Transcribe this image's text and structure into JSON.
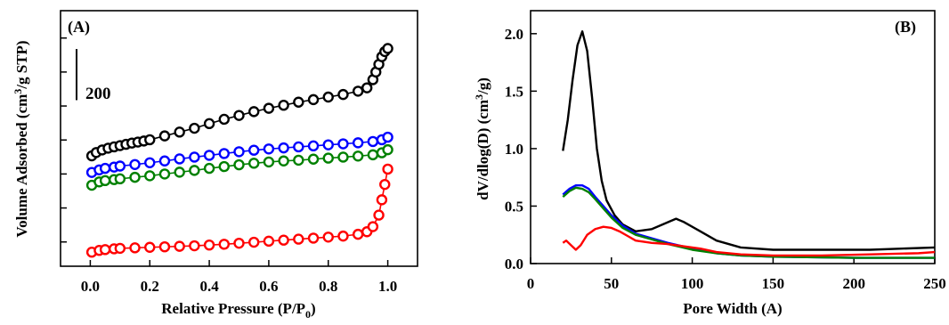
{
  "figure": {
    "panel_a_label": "(A)",
    "panel_b_label": "(B)",
    "scale_bar_label": "200"
  },
  "chart_data": [
    {
      "type": "scatter",
      "panel": "(A)",
      "xlabel": "Relative Pressure (P/P0)",
      "xlabel_parts": {
        "main": "Relative Pressure (P/P",
        "sub": "0",
        "end": ")"
      },
      "ylabel": "Volume Adsorbed (cm3/g STP)",
      "ylabel_parts": {
        "main": "Volume Adsorbed (cm",
        "sup": "3",
        "end": "/g STP)"
      },
      "xlim": [
        -0.1,
        1.1
      ],
      "xticks": [
        0.0,
        0.2,
        0.4,
        0.6,
        0.8,
        1.0
      ],
      "xtick_labels": [
        "0.0",
        "0.2",
        "0.4",
        "0.6",
        "0.8",
        "1.0"
      ],
      "ylim": [
        0,
        1000
      ],
      "y_tick_marks_units": [
        95,
        228,
        361,
        494,
        627,
        760,
        893
      ],
      "y_tick_labels_shown": false,
      "scale_bar": {
        "label": "200",
        "y_from": 650,
        "y_to": 850
      },
      "marker": "open-circle",
      "series": [
        {
          "color": "#000000",
          "x": [
            0.005,
            0.02,
            0.04,
            0.06,
            0.08,
            0.1,
            0.12,
            0.14,
            0.16,
            0.18,
            0.2,
            0.25,
            0.3,
            0.35,
            0.4,
            0.45,
            0.5,
            0.55,
            0.6,
            0.65,
            0.7,
            0.75,
            0.8,
            0.85,
            0.9,
            0.93,
            0.95,
            0.96,
            0.97,
            0.98,
            0.99,
            1.0
          ],
          "y": [
            432,
            445,
            455,
            462,
            467,
            472,
            477,
            482,
            486,
            490,
            495,
            510,
            525,
            540,
            558,
            575,
            590,
            605,
            618,
            630,
            642,
            652,
            662,
            672,
            685,
            698,
            730,
            760,
            790,
            820,
            840,
            852
          ]
        },
        {
          "color": "#0000ff",
          "x": [
            0.005,
            0.03,
            0.05,
            0.08,
            0.1,
            0.15,
            0.2,
            0.25,
            0.3,
            0.35,
            0.4,
            0.45,
            0.5,
            0.55,
            0.6,
            0.65,
            0.7,
            0.75,
            0.8,
            0.85,
            0.9,
            0.95,
            0.98,
            1.0
          ],
          "y": [
            367,
            377,
            383,
            388,
            392,
            398,
            405,
            412,
            420,
            427,
            434,
            441,
            448,
            454,
            459,
            463,
            467,
            471,
            475,
            479,
            483,
            488,
            495,
            505
          ]
        },
        {
          "color": "#008000",
          "x": [
            0.005,
            0.03,
            0.05,
            0.08,
            0.1,
            0.15,
            0.2,
            0.25,
            0.3,
            0.35,
            0.4,
            0.45,
            0.5,
            0.55,
            0.6,
            0.65,
            0.7,
            0.75,
            0.8,
            0.85,
            0.9,
            0.95,
            0.98,
            1.0
          ],
          "y": [
            317,
            330,
            335,
            339,
            342,
            348,
            354,
            361,
            368,
            375,
            383,
            390,
            397,
            403,
            408,
            412,
            415,
            419,
            423,
            427,
            431,
            436,
            444,
            456
          ]
        },
        {
          "color": "#ff0000",
          "x": [
            0.005,
            0.03,
            0.05,
            0.08,
            0.1,
            0.15,
            0.2,
            0.25,
            0.3,
            0.35,
            0.4,
            0.45,
            0.5,
            0.55,
            0.6,
            0.65,
            0.7,
            0.75,
            0.8,
            0.85,
            0.9,
            0.93,
            0.95,
            0.97,
            0.98,
            0.99,
            1.0
          ],
          "y": [
            55,
            62,
            65,
            68,
            70,
            72,
            74,
            76,
            78,
            80,
            83,
            86,
            90,
            94,
            98,
            102,
            106,
            110,
            114,
            118,
            125,
            135,
            155,
            200,
            260,
            320,
            380
          ]
        }
      ]
    },
    {
      "type": "line",
      "panel": "(B)",
      "xlabel": "Pore Width (A)",
      "ylabel": "dV/dlog(D) (cm3/g)",
      "ylabel_parts": {
        "main": "dV/dlog(D) (cm",
        "sup": "3",
        "end": "/g)"
      },
      "xlim": [
        0,
        250
      ],
      "ylim": [
        0,
        2.2
      ],
      "xticks": [
        0,
        50,
        100,
        150,
        200,
        250
      ],
      "xtick_labels": [
        "0",
        "50",
        "100",
        "150",
        "200",
        "250"
      ],
      "yticks": [
        0.0,
        0.5,
        1.0,
        1.5,
        2.0
      ],
      "ytick_labels": [
        "0.0",
        "0.5",
        "1.0",
        "1.5",
        "2.0"
      ],
      "series": [
        {
          "color": "#000000",
          "x": [
            20,
            23,
            26,
            29,
            32,
            35,
            38,
            41,
            44,
            47,
            52,
            57,
            65,
            75,
            85,
            90,
            95,
            105,
            115,
            130,
            150,
            180,
            210,
            230,
            250
          ],
          "y": [
            0.98,
            1.25,
            1.6,
            1.9,
            2.02,
            1.85,
            1.45,
            1.0,
            0.72,
            0.55,
            0.42,
            0.34,
            0.28,
            0.3,
            0.36,
            0.39,
            0.36,
            0.28,
            0.2,
            0.14,
            0.12,
            0.12,
            0.12,
            0.13,
            0.14
          ]
        },
        {
          "color": "#0000ff",
          "x": [
            20,
            24,
            28,
            32,
            36,
            40,
            45,
            50,
            57,
            65,
            75,
            85,
            100,
            115,
            130,
            150,
            200,
            250
          ],
          "y": [
            0.6,
            0.65,
            0.68,
            0.68,
            0.65,
            0.58,
            0.5,
            0.42,
            0.33,
            0.26,
            0.22,
            0.18,
            0.13,
            0.09,
            0.07,
            0.06,
            0.05,
            0.05
          ]
        },
        {
          "color": "#008000",
          "x": [
            20,
            24,
            28,
            32,
            36,
            40,
            45,
            50,
            57,
            65,
            75,
            85,
            100,
            115,
            130,
            150,
            200,
            250
          ],
          "y": [
            0.58,
            0.63,
            0.66,
            0.65,
            0.62,
            0.56,
            0.48,
            0.4,
            0.31,
            0.25,
            0.21,
            0.17,
            0.12,
            0.09,
            0.07,
            0.06,
            0.05,
            0.05
          ]
        },
        {
          "color": "#ff0000",
          "x": [
            20,
            22,
            25,
            28,
            31,
            35,
            40,
            45,
            50,
            55,
            60,
            65,
            75,
            85,
            95,
            105,
            115,
            130,
            150,
            180,
            210,
            240,
            250
          ],
          "y": [
            0.18,
            0.2,
            0.16,
            0.12,
            0.16,
            0.25,
            0.3,
            0.32,
            0.31,
            0.28,
            0.24,
            0.2,
            0.18,
            0.17,
            0.15,
            0.13,
            0.1,
            0.08,
            0.07,
            0.07,
            0.08,
            0.09,
            0.1
          ]
        }
      ]
    }
  ]
}
